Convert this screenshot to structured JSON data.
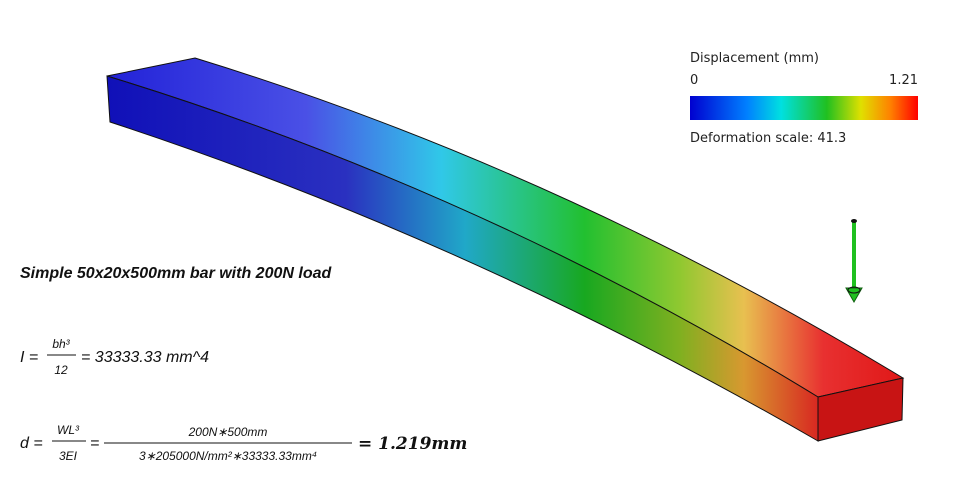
{
  "legend": {
    "title": "Displacement (mm)",
    "min": 0,
    "max": 1.21,
    "scale_note": "Deformation scale: 41.3"
  },
  "annotation": {
    "title": "Simple 50x20x500mm bar with 200N load",
    "inertia": {
      "lhs": "I =",
      "numerator": "bh³",
      "denominator": "12",
      "result": "= 33333.33 mm^4"
    },
    "deflection": {
      "lhs": "d =",
      "numerator": "WL³",
      "denominator": "3EI",
      "equals": "=",
      "sub_numerator": "200N∗500mm",
      "sub_denominator": "3∗205000N/mm²∗33333.33mm⁴",
      "result": "= 1.219mm"
    }
  }
}
